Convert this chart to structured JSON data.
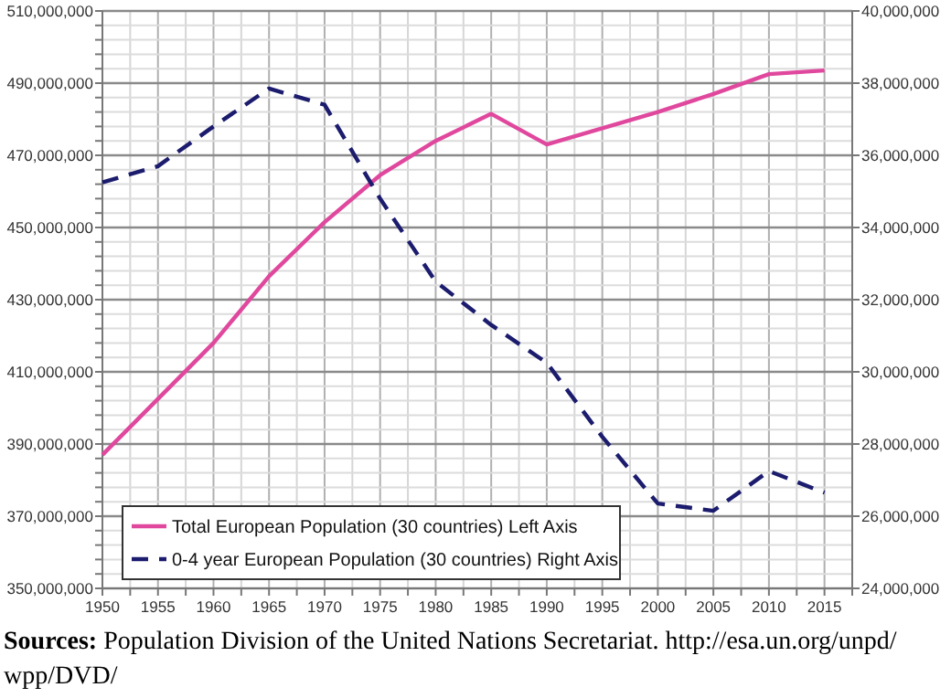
{
  "chart_data": {
    "type": "line",
    "annotations": [
      "Sources: Population Division of the United Nations Secretariat. http://esa.un.org/unpd/wpp/DVD/"
    ],
    "x": [
      1950,
      1955,
      1960,
      1965,
      1970,
      1975,
      1980,
      1985,
      1990,
      1995,
      2000,
      2005,
      2010,
      2015
    ],
    "series": [
      {
        "name": "Total European Population (30 countries) Left Axis",
        "color": "#e0489e",
        "line_style": "solid",
        "values": [
          387000000,
          402500000,
          418000000,
          436500000,
          451500000,
          464500000,
          474000000,
          481500000,
          473000000,
          477500000,
          482000000,
          487000000,
          492500000,
          493500000
        ]
      },
      {
        "name": "0-4 year European Population (30 countries) Right Axis",
        "color": "#1c1c6e",
        "axis": "y2",
        "line_style": "dashed",
        "values": [
          35250000,
          35700000,
          36800000,
          37850000,
          37400000,
          34800000,
          32500000,
          31300000,
          30250000,
          28200000,
          26350000,
          26150000,
          27250000,
          26650000
        ]
      }
    ],
    "xlim": [
      1950,
      2017.5
    ],
    "xticks": [
      1950,
      {
        "value": 1952.5,
        "label": null
      },
      1955,
      {
        "value": 1957.5,
        "label": null
      },
      1960,
      {
        "value": 1962.5,
        "label": null
      },
      1965,
      {
        "value": 1967.5,
        "label": null
      },
      1970,
      {
        "value": 1972.5,
        "label": null
      },
      1975,
      {
        "value": 1977.5,
        "label": null
      },
      1980,
      {
        "value": 1982.5,
        "label": null
      },
      1985,
      {
        "value": 1987.5,
        "label": null
      },
      1990,
      {
        "value": 1992.5,
        "label": null
      },
      1995,
      {
        "value": 1997.5,
        "label": null
      },
      2000,
      {
        "value": 2002.5,
        "label": null
      },
      2005,
      {
        "value": 2007.5,
        "label": null
      },
      2010,
      {
        "value": 2012.5,
        "label": null
      },
      2015,
      {
        "value": 2017.5,
        "label": null
      }
    ],
    "ylim": [
      350000000,
      510000000
    ],
    "yticks": [
      {
        "value": 350000000,
        "label": "350,000,000"
      },
      {
        "value": 354000000,
        "label": null
      },
      {
        "value": 358000000,
        "label": null
      },
      {
        "value": 362000000,
        "label": null
      },
      {
        "value": 366000000,
        "label": null
      },
      {
        "value": 370000000,
        "label": "370,000,000"
      },
      {
        "value": 374000000,
        "label": null
      },
      {
        "value": 378000000,
        "label": null
      },
      {
        "value": 382000000,
        "label": null
      },
      {
        "value": 386000000,
        "label": null
      },
      {
        "value": 390000000,
        "label": "390,000,000"
      },
      {
        "value": 394000000,
        "label": null
      },
      {
        "value": 398000000,
        "label": null
      },
      {
        "value": 402000000,
        "label": null
      },
      {
        "value": 406000000,
        "label": null
      },
      {
        "value": 410000000,
        "label": "410,000,000"
      },
      {
        "value": 414000000,
        "label": null
      },
      {
        "value": 418000000,
        "label": null
      },
      {
        "value": 422000000,
        "label": null
      },
      {
        "value": 426000000,
        "label": null
      },
      {
        "value": 430000000,
        "label": "430,000,000"
      },
      {
        "value": 434000000,
        "label": null
      },
      {
        "value": 438000000,
        "label": null
      },
      {
        "value": 442000000,
        "label": null
      },
      {
        "value": 446000000,
        "label": null
      },
      {
        "value": 450000000,
        "label": "450,000,000"
      },
      {
        "value": 454000000,
        "label": null
      },
      {
        "value": 458000000,
        "label": null
      },
      {
        "value": 462000000,
        "label": null
      },
      {
        "value": 466000000,
        "label": null
      },
      {
        "value": 470000000,
        "label": "470,000,000"
      },
      {
        "value": 474000000,
        "label": null
      },
      {
        "value": 478000000,
        "label": null
      },
      {
        "value": 482000000,
        "label": null
      },
      {
        "value": 486000000,
        "label": null
      },
      {
        "value": 490000000,
        "label": "490,000,000"
      },
      {
        "value": 494000000,
        "label": null
      },
      {
        "value": 498000000,
        "label": null
      },
      {
        "value": 502000000,
        "label": null
      },
      {
        "value": 506000000,
        "label": null
      },
      {
        "value": 510000000,
        "label": "510,000,000"
      }
    ],
    "y2lim": [
      24000000,
      40000000
    ],
    "y2ticks": [
      {
        "value": 24000000,
        "label": "24,000,000"
      },
      {
        "value": 26000000,
        "label": "26,000,000"
      },
      {
        "value": 28000000,
        "label": "28,000,000"
      },
      {
        "value": 30000000,
        "label": "30,000,000"
      },
      {
        "value": 32000000,
        "label": "32,000,000"
      },
      {
        "value": 34000000,
        "label": "34,000,000"
      },
      {
        "value": 36000000,
        "label": "36,000,000"
      },
      {
        "value": 38000000,
        "label": "38,000,000"
      },
      {
        "value": 40000000,
        "label": "40,000,000"
      }
    ],
    "grid": true,
    "legend": "bottom left"
  }
}
